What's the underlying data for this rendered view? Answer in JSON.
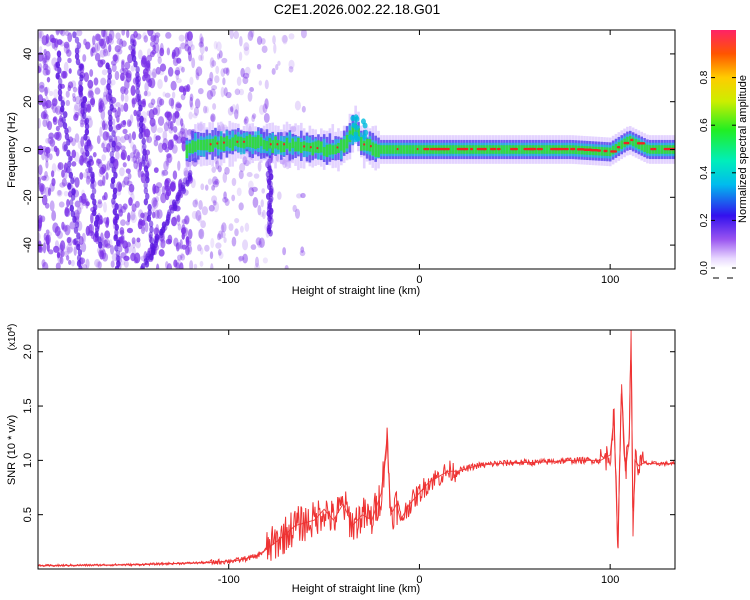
{
  "title": "C2E1.2026.002.22.18.G01",
  "chart_data": [
    {
      "type": "heatmap",
      "xlabel": "Height of straight line (km)",
      "ylabel": "Frequency (Hz)",
      "xlim": [
        -200,
        134
      ],
      "ylim": [
        -50,
        50
      ],
      "xticks": [
        -100,
        0,
        100
      ],
      "yticks": [
        -40,
        -20,
        0,
        20,
        40
      ],
      "colorbar": {
        "label": "Normalized spectral amplitude",
        "range": [
          0,
          1
        ],
        "ticks": [
          "0.0",
          "0.2",
          "0.4",
          "0.6",
          "0.8"
        ]
      },
      "ridge_points": [
        {
          "x": -120,
          "y": 2
        },
        {
          "x": -110,
          "y": 2
        },
        {
          "x": -100,
          "y": 3
        },
        {
          "x": -90,
          "y": 3
        },
        {
          "x": -80,
          "y": 2
        },
        {
          "x": -70,
          "y": 2
        },
        {
          "x": -60,
          "y": 1
        },
        {
          "x": -50,
          "y": 0
        },
        {
          "x": -40,
          "y": 1
        },
        {
          "x": -33,
          "y": 10
        },
        {
          "x": -30,
          "y": 2
        },
        {
          "x": -20,
          "y": 0
        },
        {
          "x": -10,
          "y": 0
        },
        {
          "x": 0,
          "y": 0
        },
        {
          "x": 20,
          "y": 0
        },
        {
          "x": 40,
          "y": 0
        },
        {
          "x": 60,
          "y": 0
        },
        {
          "x": 80,
          "y": 0
        },
        {
          "x": 100,
          "y": -1
        },
        {
          "x": 110,
          "y": 4
        },
        {
          "x": 120,
          "y": 0
        },
        {
          "x": 134,
          "y": 0
        }
      ],
      "stripes": [
        {
          "x0": -190,
          "y0": 40,
          "x1": -178,
          "y1": -50
        },
        {
          "x0": -180,
          "y0": 48,
          "x1": -168,
          "y1": -40
        },
        {
          "x0": -163,
          "y0": 35,
          "x1": -158,
          "y1": -50
        },
        {
          "x0": -150,
          "y0": 45,
          "x1": -140,
          "y1": -45
        },
        {
          "x0": -145,
          "y0": -50,
          "x1": -120,
          "y1": -10
        },
        {
          "x0": -78,
          "y0": -35,
          "x1": -79,
          "y1": 5
        }
      ]
    },
    {
      "type": "line",
      "xlabel": "Height of straight line (km)",
      "ylabel": "SNR (10 * v/v)",
      "y_scale_label": "(x10",
      "y_scale_exponent": "4",
      "xlim": [
        -200,
        134
      ],
      "ylim": [
        0,
        2.2
      ],
      "xticks": [
        -100,
        0,
        100
      ],
      "yticks": [
        0.5,
        1.0,
        1.5,
        2.0
      ],
      "ytick_labels": [
        "0.5",
        "1.0",
        "1.5",
        "2.0"
      ],
      "series": [
        {
          "name": "SNR",
          "color": "#ee3333",
          "x": [
            -200,
            -150,
            -110,
            -95,
            -85,
            -75,
            -65,
            -55,
            -50,
            -45,
            -40,
            -35,
            -30,
            -25,
            -20,
            -17,
            -15,
            -12,
            -10,
            -5,
            0,
            5,
            10,
            15,
            20,
            30,
            40,
            50,
            60,
            70,
            80,
            90,
            95,
            100,
            102,
            104,
            106,
            108,
            110,
            111,
            112,
            113,
            115,
            118,
            120,
            125,
            130,
            134
          ],
          "y": [
            0.03,
            0.04,
            0.06,
            0.08,
            0.12,
            0.25,
            0.4,
            0.45,
            0.55,
            0.45,
            0.6,
            0.4,
            0.5,
            0.45,
            0.7,
            1.2,
            0.5,
            0.6,
            0.45,
            0.6,
            0.7,
            0.8,
            0.85,
            0.9,
            0.9,
            0.95,
            0.97,
            0.98,
            0.98,
            0.99,
            1.0,
            1.0,
            1.0,
            1.05,
            1.4,
            0.2,
            1.7,
            0.9,
            1.2,
            2.2,
            0.3,
            1.0,
            0.95,
            0.98,
            0.97,
            0.97,
            0.97,
            0.97
          ]
        }
      ]
    }
  ],
  "colors": {
    "line": "#ee3333",
    "noise": "#7a30e8",
    "ridge_core": "#ee2222",
    "ridge_mid": "#33dd33",
    "ridge_outer": "#22bbdd",
    "ridge_halo": "#4433ee"
  }
}
